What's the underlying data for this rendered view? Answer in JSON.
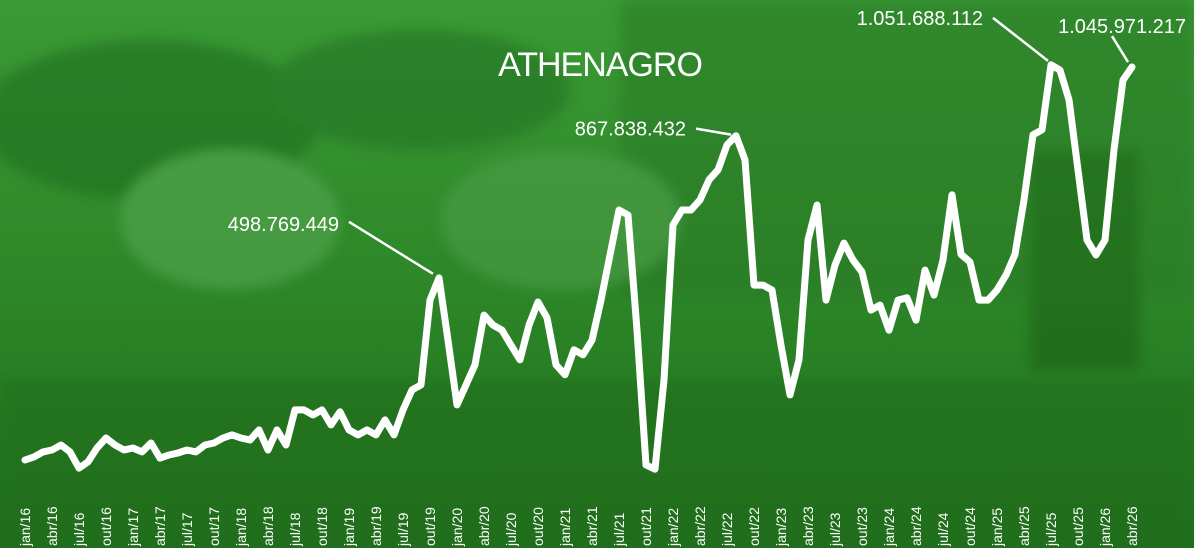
{
  "chart_data": {
    "type": "line",
    "logo": "ATHENAGRO",
    "categories": [
      "jan/16",
      null,
      null,
      "abr/16",
      null,
      null,
      "jul/16",
      null,
      null,
      "out/16",
      null,
      null,
      "jan/17",
      null,
      null,
      "abr/17",
      null,
      null,
      "jul/17",
      null,
      null,
      "out/17",
      null,
      null,
      "jan/18",
      null,
      null,
      "abr/18",
      null,
      null,
      "jul/18",
      null,
      null,
      "out/18",
      null,
      null,
      "jan/19",
      null,
      null,
      "abr/19",
      null,
      null,
      "jul/19",
      null,
      null,
      "out/19",
      null,
      null,
      "jan/20",
      null,
      null,
      "abr/20",
      null,
      null,
      "jul/20",
      null,
      null,
      "out/20",
      null,
      null,
      "jan/21",
      null,
      null,
      "abr/21",
      null,
      null,
      "jul/21",
      null,
      null,
      "out/21",
      null,
      null,
      "jan/22",
      null,
      null,
      "abr/22",
      null,
      null,
      "jul/22",
      null,
      null,
      "out/22",
      null,
      null,
      "jan/23",
      null,
      null,
      "abr/23",
      null,
      null,
      "jul/23",
      null,
      null,
      "out/23",
      null,
      null,
      "jan/24",
      null,
      null,
      "abr/24",
      null,
      null,
      "jul/24",
      null,
      null,
      "out/24",
      null,
      null,
      "jan/25",
      null,
      null,
      "abr/25",
      null,
      null,
      "jul/25",
      null,
      null,
      "out/25",
      null,
      null,
      "jan/26",
      null,
      null,
      "abr/26"
    ],
    "values": [
      26000000,
      34000000,
      47000000,
      52000000,
      65000000,
      47000000,
      5000000,
      21000000,
      57000000,
      83000000,
      65000000,
      52000000,
      57000000,
      47000000,
      70000000,
      31000000,
      39000000,
      44000000,
      52000000,
      47000000,
      65000000,
      70000000,
      83000000,
      91000000,
      83000000,
      78000000,
      104000000,
      52000000,
      104000000,
      65000000,
      156000000,
      156000000,
      143000000,
      156000000,
      117000000,
      151000000,
      104000000,
      91000000,
      104000000,
      91000000,
      130000000,
      91000000,
      156000000,
      208000000,
      221000000,
      441000000,
      498769449,
      337000000,
      169000000,
      221000000,
      273000000,
      402000000,
      376000000,
      363000000,
      324000000,
      286000000,
      376000000,
      436000000,
      395000000,
      273000000,
      247000000,
      312000000,
      299000000,
      337000000,
      441000000,
      558000000,
      675000000,
      662000000,
      363000000,
      13000000,
      2000000,
      234000000,
      636000000,
      675000000,
      675000000,
      701000000,
      753000000,
      779000000,
      844000000,
      867838432,
      805000000,
      480000000,
      480000000,
      467000000,
      324000000,
      195000000,
      286000000,
      597000000,
      688000000,
      441000000,
      532000000,
      589000000,
      545000000,
      514000000,
      415000000,
      428000000,
      363000000,
      441000000,
      447000000,
      389000000,
      519000000,
      454000000,
      545000000,
      714000000,
      560000000,
      540000000,
      441000000,
      441000000,
      467000000,
      506000000,
      560000000,
      701000000,
      870000000,
      883000000,
      1051688112,
      1038000000,
      961000000,
      779000000,
      597000000,
      558000000,
      597000000,
      831000000,
      1012000000,
      1045971217
    ],
    "value_labels": [
      null,
      null,
      null,
      null,
      null,
      null,
      null,
      null,
      null,
      null,
      null,
      null,
      null,
      null,
      null,
      null,
      null,
      null,
      null,
      null,
      null,
      null,
      null,
      null,
      null,
      null,
      null,
      null,
      null,
      null,
      null,
      null,
      null,
      null,
      null,
      null,
      null,
      null,
      null,
      null,
      null,
      null,
      null,
      null,
      null,
      null,
      "498.769.449",
      null,
      null,
      null,
      null,
      null,
      null,
      null,
      null,
      null,
      null,
      null,
      null,
      null,
      null,
      null,
      null,
      null,
      null,
      null,
      null,
      null,
      null,
      null,
      null,
      null,
      null,
      null,
      null,
      null,
      null,
      null,
      null,
      "867.838.432",
      null,
      null,
      null,
      null,
      null,
      null,
      null,
      null,
      null,
      null,
      null,
      null,
      null,
      null,
      null,
      null,
      null,
      null,
      null,
      null,
      null,
      null,
      null,
      null,
      null,
      null,
      null,
      null,
      null,
      null,
      null,
      null,
      null,
      null,
      "1.051.688.112",
      null,
      null,
      null,
      null,
      null,
      null,
      null,
      null,
      "1.045.971.217"
    ],
    "color": "#ffffff",
    "ylim": [
      0,
      1220000000
    ]
  }
}
